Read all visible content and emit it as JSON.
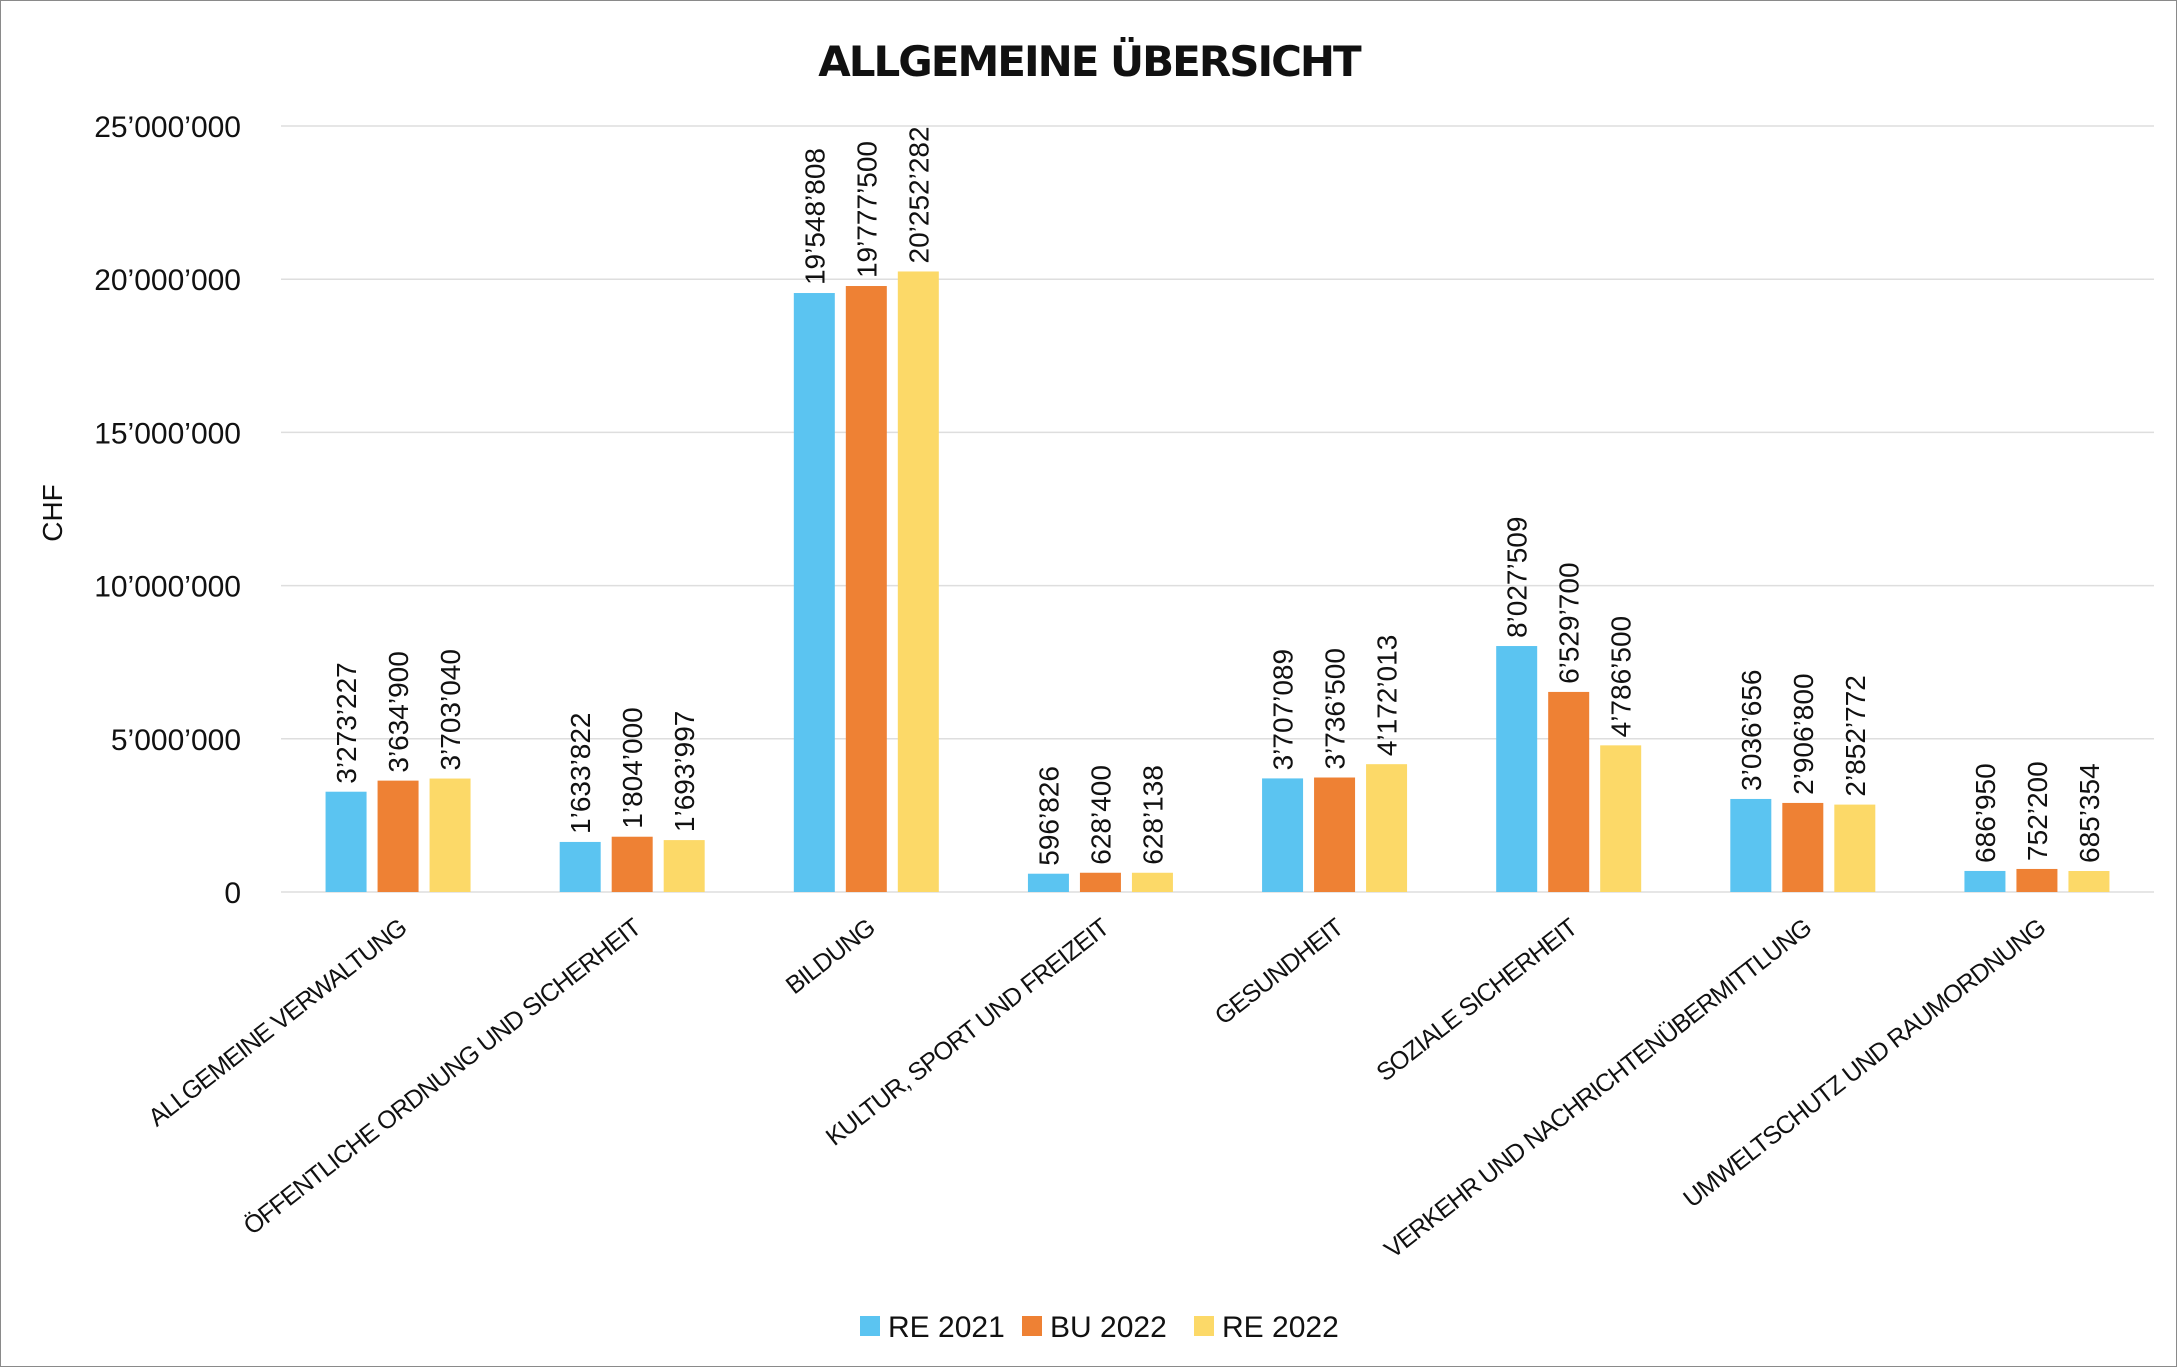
{
  "chart_data": {
    "type": "bar",
    "title": "ALLGEMEINE ÜBERSICHT",
    "xlabel": "",
    "ylabel": "CHF",
    "ylim": [
      0,
      25000000
    ],
    "yticks": [
      0,
      5000000,
      10000000,
      15000000,
      20000000,
      25000000
    ],
    "ytick_labels": [
      "0",
      "5’000’000",
      "10’000’000",
      "15’000’000",
      "20’000’000",
      "25’000’000"
    ],
    "grid": true,
    "legend_position": "bottom",
    "categories": [
      "ALLGEMEINE VERWALTUNG",
      "ÖFFENTLICHE ORDNUNG UND SICHERHEIT",
      "BILDUNG",
      "KULTUR, SPORT UND FREIZEIT",
      "GESUNDHEIT",
      "SOZIALE SICHERHEIT",
      "VERKEHR UND NACHRICHTENÜBERMITTLUNG",
      "UMWELTSCHUTZ UND RAUMORDNUNG"
    ],
    "series": [
      {
        "name": "RE 2021",
        "color": "#5BC4F1",
        "values": [
          3273227,
          1633822,
          19548808,
          596826,
          3707089,
          8027509,
          3036656,
          686950
        ],
        "labels": [
          "3’273’227",
          "1’633’822",
          "19’548’808",
          "596’826",
          "3’707’089",
          "8’027’509",
          "3’036’656",
          "686’950"
        ]
      },
      {
        "name": "BU 2022",
        "color": "#EE8134",
        "values": [
          3634900,
          1804000,
          19777500,
          628400,
          3736500,
          6529700,
          2906800,
          752200
        ],
        "labels": [
          "3’634’900",
          "1’804’000",
          "19’777’500",
          "628’400",
          "3’736’500",
          "6’529’700",
          "2’906’800",
          "752’200"
        ]
      },
      {
        "name": "RE 2022",
        "color": "#FCD968",
        "values": [
          3703040,
          1693997,
          20252282,
          628138,
          4172013,
          4786500,
          2852772,
          685354
        ],
        "labels": [
          "3’703’040",
          "1’693’997",
          "20’252’282",
          "628’138",
          "4’172’013",
          "4’786’500",
          "2’852’772",
          "685’354"
        ]
      }
    ]
  }
}
